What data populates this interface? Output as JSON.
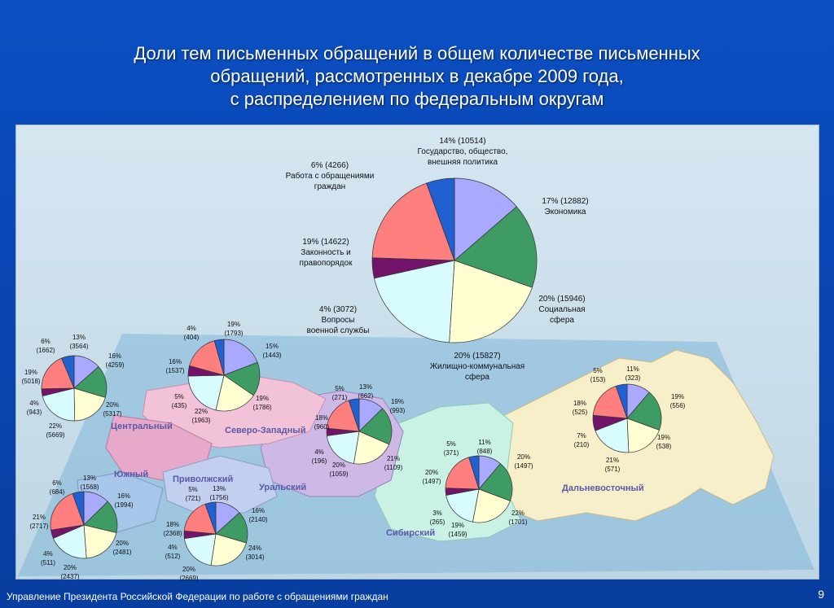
{
  "title": "Доли тем письменных обращений в общем количестве письменных\nобращений, рассмотренных в декабре 2009 года,\nс распределением по федеральным округам",
  "footer": "Управление Президента Российской Федерации по работе с обращениями граждан",
  "page_number": "9",
  "colors": {
    "background": "#0a47b6",
    "state_society": "#a9a9ff",
    "economy": "#3e9b63",
    "social": "#ffffd1",
    "housing": "#d7fbff",
    "military": "#73146b",
    "law": "#ff7e7e",
    "citizen_work": "#2060d0"
  },
  "map": {
    "region_labels": [
      "Центральный",
      "Северо-Западный",
      "Южный",
      "Приволжский",
      "Уральский",
      "Сибирский",
      "Дальневосточный"
    ]
  },
  "chart_data": [
    {
      "type": "pie",
      "title": "",
      "slices": [
        {
          "percent": 14,
          "value": 10514,
          "label": "Государство, общество, внешняя политика"
        },
        {
          "percent": 17,
          "value": 12882,
          "label": "Экономика"
        },
        {
          "percent": 20,
          "value": 15946,
          "label": "Социальная сфера"
        },
        {
          "percent": 20,
          "value": 15827,
          "label": "Жилищно-коммунальная сфера"
        },
        {
          "percent": 4,
          "value": 3072,
          "label": "Вопросы военной службы"
        },
        {
          "percent": 19,
          "value": 14622,
          "label": "Законность и правопорядок"
        },
        {
          "percent": 6,
          "value": 4266,
          "label": "Работа с обращениями граждан"
        }
      ],
      "labels": [
        {
          "lines": [
            "14% (10514)",
            "Государство, общество,",
            "внешняя политика"
          ]
        },
        {
          "lines": [
            "17% (12882)",
            "Экономика"
          ]
        },
        {
          "lines": [
            "20% (15946)",
            "Социальная",
            "сфера"
          ]
        },
        {
          "lines": [
            "20% (15827)",
            "Жилищно-коммунальная",
            "сфера"
          ]
        },
        {
          "lines": [
            "4% (3072)",
            "Вопросы",
            "военной службы"
          ]
        },
        {
          "lines": [
            "19% (14622)",
            "Законность и",
            "правопорядок"
          ]
        },
        {
          "lines": [
            "6% (4266)",
            "Работа с обращениями",
            "граждан"
          ]
        }
      ]
    },
    {
      "type": "pie",
      "title": "Центральный",
      "slices": [
        {
          "percent": 13,
          "value": 3564
        },
        {
          "percent": 16,
          "value": 4259
        },
        {
          "percent": 20,
          "value": 5317
        },
        {
          "percent": 22,
          "value": 5669
        },
        {
          "percent": 4,
          "value": 943
        },
        {
          "percent": 19,
          "value": 5018
        },
        {
          "percent": 6,
          "value": 1662
        }
      ],
      "labels": [
        {
          "lines": [
            "13%",
            "(3564)"
          ]
        },
        {
          "lines": [
            "16%",
            "(4259)"
          ]
        },
        {
          "lines": [
            "20%",
            "(5317)"
          ]
        },
        {
          "lines": [
            "22%",
            "(5669)"
          ]
        },
        {
          "lines": [
            "4%",
            "(943)"
          ]
        },
        {
          "lines": [
            "19%",
            "(5018)"
          ]
        },
        {
          "lines": [
            "6%",
            "(1662)"
          ]
        }
      ]
    },
    {
      "type": "pie",
      "title": "Северо-Западный",
      "slices": [
        {
          "percent": 19,
          "value": 1793
        },
        {
          "percent": 15,
          "value": 1443
        },
        {
          "percent": 19,
          "value": 1786
        },
        {
          "percent": 22,
          "value": 1963
        },
        {
          "percent": 5,
          "value": 435
        },
        {
          "percent": 16,
          "value": 1537
        },
        {
          "percent": 4,
          "value": 404
        }
      ],
      "labels": [
        {
          "lines": [
            "19%",
            "(1793)"
          ]
        },
        {
          "lines": [
            "15%",
            "(1443)"
          ]
        },
        {
          "lines": [
            "19%",
            "(1786)"
          ]
        },
        {
          "lines": [
            "22%",
            "(1963)"
          ]
        },
        {
          "lines": [
            "5%",
            "(435)"
          ]
        },
        {
          "lines": [
            "16%",
            "(1537)"
          ]
        },
        {
          "lines": [
            "4%",
            "(404)"
          ]
        }
      ]
    },
    {
      "type": "pie",
      "title": "Уральский",
      "slices": [
        {
          "percent": 13,
          "value": 662
        },
        {
          "percent": 19,
          "value": 993
        },
        {
          "percent": 21,
          "value": 1109
        },
        {
          "percent": 20,
          "value": 1059
        },
        {
          "percent": 4,
          "value": 196
        },
        {
          "percent": 18,
          "value": 960
        },
        {
          "percent": 5,
          "value": 271
        }
      ],
      "labels": [
        {
          "lines": [
            "13%",
            "(662)"
          ]
        },
        {
          "lines": [
            "19%",
            "(993)"
          ]
        },
        {
          "lines": [
            "21%",
            "(1109)"
          ]
        },
        {
          "lines": [
            "20%",
            "(1059)"
          ]
        },
        {
          "lines": [
            "4%",
            "(196)"
          ]
        },
        {
          "lines": [
            "18%",
            "(960)"
          ]
        },
        {
          "lines": [
            "5%",
            "(271)"
          ]
        }
      ]
    },
    {
      "type": "pie",
      "title": "Сибирский",
      "slices": [
        {
          "percent": 11,
          "value": 848
        },
        {
          "percent": 20,
          "value": 1497
        },
        {
          "percent": 22,
          "value": 1701
        },
        {
          "percent": 19,
          "value": 1459
        },
        {
          "percent": 3,
          "value": 265
        },
        {
          "percent": 20,
          "value": 1497
        },
        {
          "percent": 5,
          "value": 371
        }
      ],
      "labels": [
        {
          "lines": [
            "11%",
            "(848)"
          ]
        },
        {
          "lines": [
            "20%",
            "(1497)"
          ]
        },
        {
          "lines": [
            "22%",
            "(1701)"
          ]
        },
        {
          "lines": [
            "19%",
            "(1459)"
          ]
        },
        {
          "lines": [
            "3%",
            "(265)"
          ]
        },
        {
          "lines": [
            "20%",
            "(1497)"
          ]
        },
        {
          "lines": [
            "5%",
            "(371)"
          ]
        }
      ]
    },
    {
      "type": "pie",
      "title": "Дальневосточный",
      "slices": [
        {
          "percent": 11,
          "value": 323
        },
        {
          "percent": 19,
          "value": 556
        },
        {
          "percent": 19,
          "value": 538
        },
        {
          "percent": 21,
          "value": 571
        },
        {
          "percent": 7,
          "value": 210
        },
        {
          "percent": 18,
          "value": 525
        },
        {
          "percent": 5,
          "value": 153
        }
      ],
      "labels": [
        {
          "lines": [
            "11%",
            "(323)"
          ]
        },
        {
          "lines": [
            "19%",
            "(556)"
          ]
        },
        {
          "lines": [
            "19%",
            "(538)"
          ]
        },
        {
          "lines": [
            "21%",
            "(571)"
          ]
        },
        {
          "lines": [
            "7%",
            "(210)"
          ]
        },
        {
          "lines": [
            "18%",
            "(525)"
          ]
        },
        {
          "lines": [
            "5%",
            "(153)"
          ]
        }
      ]
    },
    {
      "type": "pie",
      "title": "Южный",
      "slices": [
        {
          "percent": 13,
          "value": 1568
        },
        {
          "percent": 16,
          "value": 1994
        },
        {
          "percent": 20,
          "value": 2481
        },
        {
          "percent": 20,
          "value": 2437
        },
        {
          "percent": 4,
          "value": 511
        },
        {
          "percent": 21,
          "value": 2717
        },
        {
          "percent": 6,
          "value": 684
        }
      ],
      "labels": [
        {
          "lines": [
            "13%",
            "(1568)"
          ]
        },
        {
          "lines": [
            "16%",
            "(1994)"
          ]
        },
        {
          "lines": [
            "20%",
            "(2481)"
          ]
        },
        {
          "lines": [
            "20%",
            "(2437)"
          ]
        },
        {
          "lines": [
            "4%",
            "(511)"
          ]
        },
        {
          "lines": [
            "21%",
            "(2717)"
          ]
        },
        {
          "lines": [
            "6%",
            "(684)"
          ]
        }
      ]
    },
    {
      "type": "pie",
      "title": "Приволжский",
      "slices": [
        {
          "percent": 13,
          "value": 1756
        },
        {
          "percent": 16,
          "value": 2140
        },
        {
          "percent": 24,
          "value": 3014
        },
        {
          "percent": 20,
          "value": 2669
        },
        {
          "percent": 4,
          "value": 512
        },
        {
          "percent": 18,
          "value": 2368
        },
        {
          "percent": 5,
          "value": 721
        }
      ],
      "labels": [
        {
          "lines": [
            "13%",
            "(1756)"
          ]
        },
        {
          "lines": [
            "16%",
            "(2140)"
          ]
        },
        {
          "lines": [
            "24%",
            "(3014)"
          ]
        },
        {
          "lines": [
            "20%",
            "(2669)"
          ]
        },
        {
          "lines": [
            "4%",
            "(512)"
          ]
        },
        {
          "lines": [
            "18%",
            "(2368)"
          ]
        },
        {
          "lines": [
            "5%",
            "(721)"
          ]
        }
      ]
    }
  ]
}
